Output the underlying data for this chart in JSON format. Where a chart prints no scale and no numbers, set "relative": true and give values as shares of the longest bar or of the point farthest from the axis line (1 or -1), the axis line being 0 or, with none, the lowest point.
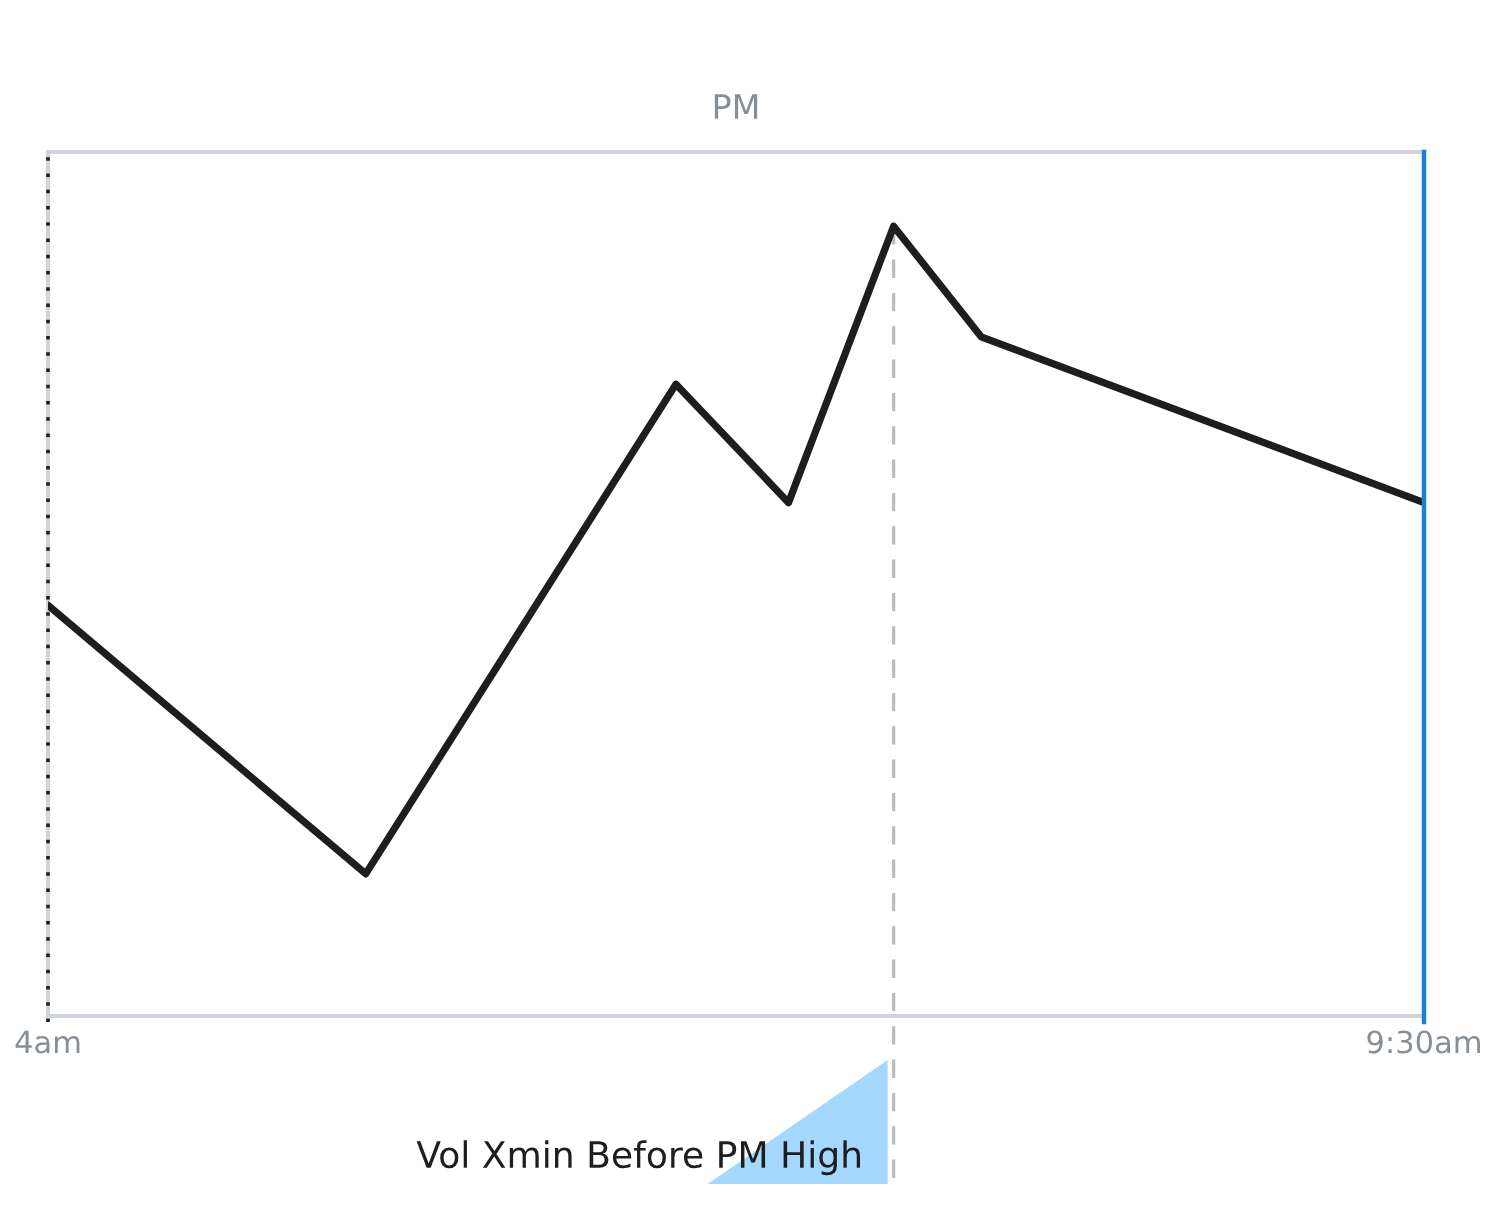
{
  "chart_data": {
    "type": "line",
    "title": "PM",
    "x": [
      4,
      5.27,
      6.51,
      6.96,
      7.38,
      7.73,
      9.5
    ],
    "series": [
      {
        "color": "#1e1e1e",
        "values": [
          0.52,
          0.18,
          0.8,
          0.65,
          1,
          0.86,
          0.65
        ]
      }
    ],
    "relative": true,
    "xlim": [
      4,
      9.5
    ],
    "xticks": [
      {
        "value": 4,
        "label": "4am"
      },
      {
        "value": 9.5,
        "label": "9:30am"
      }
    ],
    "ref_lines": [
      {
        "axis": "x",
        "value": 4,
        "color": "#1e1e1e",
        "line_style": "dotted"
      },
      {
        "axis": "x",
        "value": 7.38,
        "label": "Vol Xmin Before PM High",
        "color": "#bdbdbd",
        "line_style": "dashed"
      },
      {
        "axis": "x",
        "value": 9.5,
        "color": "#1c7ed6",
        "line_style": "solid"
      }
    ]
  }
}
